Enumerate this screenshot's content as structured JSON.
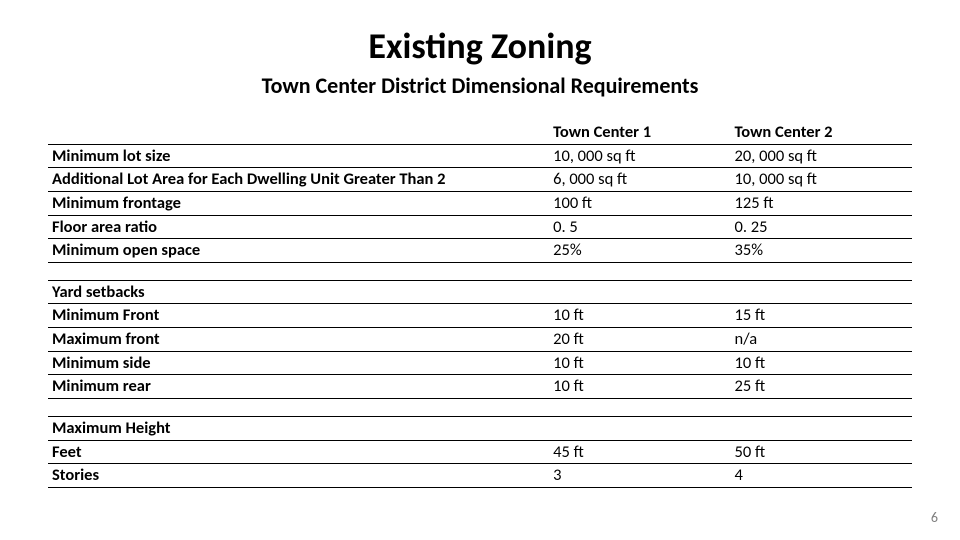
{
  "title": "Existing Zoning",
  "subtitle": "Town Center District Dimensional Requirements",
  "page_number": "6",
  "styling": {
    "type": "table",
    "background_color": "#ffffff",
    "text_color": "#000000",
    "rowline_color": "#000000",
    "title_fontsize": 36,
    "subtitle_fontsize": 22,
    "body_fontsize": 16.5,
    "pagenum_color": "#7f7f7f",
    "columns": [
      "",
      "Town Center 1",
      "Town Center 2"
    ],
    "column_widths_pct": [
      58,
      21,
      21
    ]
  },
  "table": {
    "header": {
      "label": "",
      "c1": "Town Center 1",
      "c2": "Town Center 2"
    },
    "group1": [
      {
        "label": "Minimum lot size",
        "c1": "10, 000 sq ft",
        "c2": "20, 000 sq ft"
      },
      {
        "label": "Additional  Lot Area for Each Dwelling Unit Greater Than 2",
        "c1": "6, 000 sq ft",
        "c2": "10, 000 sq ft"
      },
      {
        "label": "Minimum frontage",
        "c1": "100 ft",
        "c2": "125 ft"
      },
      {
        "label": "Floor area ratio",
        "c1": "0. 5",
        "c2": "0. 25"
      },
      {
        "label": "Minimum open space",
        "c1": "25%",
        "c2": "35%"
      }
    ],
    "group2_header": "Yard setbacks",
    "group2": [
      {
        "label": "Minimum Front",
        "c1": "10 ft",
        "c2": "15 ft"
      },
      {
        "label": "Maximum front",
        "c1": "20 ft",
        "c2": "n/a"
      },
      {
        "label": "Minimum side",
        "c1": "10 ft",
        "c2": "10 ft"
      },
      {
        "label": "Minimum rear",
        "c1": "10 ft",
        "c2": "25 ft"
      }
    ],
    "group3_header": "Maximum Height",
    "group3": [
      {
        "label": "Feet",
        "c1": "45 ft",
        "c2": "50 ft"
      },
      {
        "label": "Stories",
        "c1": "3",
        "c2": "4"
      }
    ]
  }
}
